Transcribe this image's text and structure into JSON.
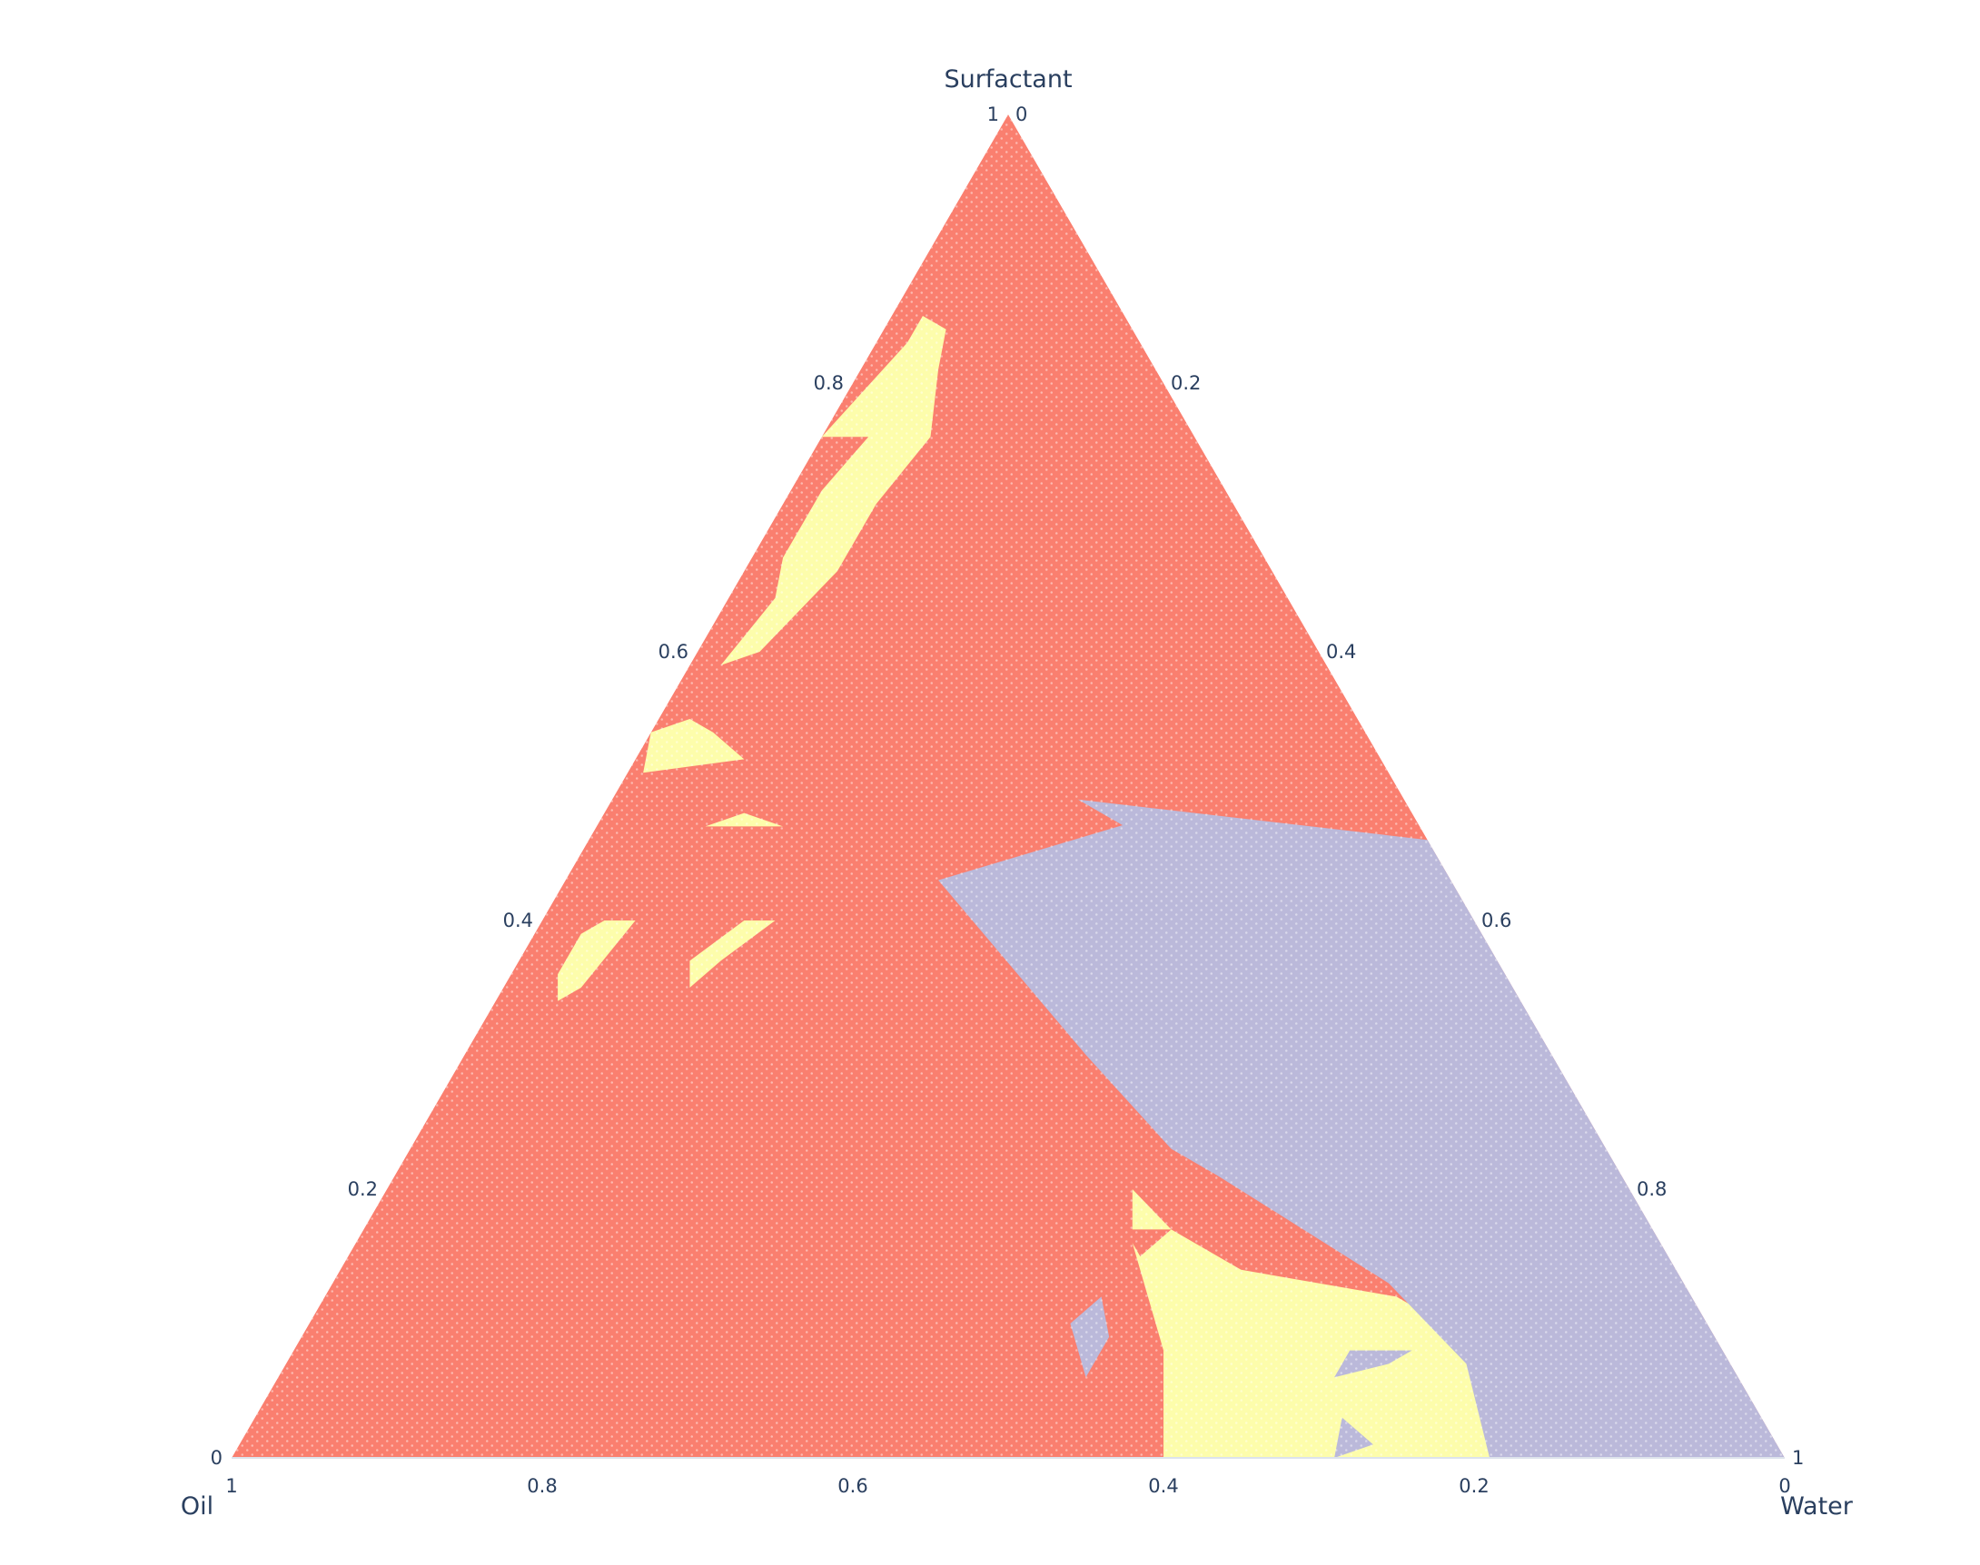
{
  "chart_data": {
    "type": "ternary",
    "axes": {
      "a": {
        "title": "Surfactant",
        "ticks": [
          "0",
          "0.2",
          "0.4",
          "0.6",
          "0.8",
          "1"
        ]
      },
      "b": {
        "title": "Oil",
        "ticks": [
          "0",
          "0.2",
          "0.4",
          "0.6",
          "0.8",
          "1"
        ]
      },
      "c": {
        "title": "Water",
        "ticks": [
          "0",
          "0.2",
          "0.4",
          "0.6",
          "0.8",
          "1"
        ]
      }
    },
    "grid": false,
    "legend": "none",
    "colors": {
      "salmon": "#fa7f6f",
      "yellow": "#fdfdab",
      "lavender": "#bbb9da",
      "axis_text": "#2a3f5f"
    },
    "regions": [
      {
        "color": "yellow",
        "vertices": [
          [
            0.83,
            0.15,
            0.02
          ],
          [
            0.76,
            0.24,
            0.0
          ],
          [
            0.76,
            0.21,
            0.03
          ],
          [
            0.72,
            0.26,
            0.02
          ],
          [
            0.67,
            0.31,
            0.02
          ],
          [
            0.64,
            0.33,
            0.03
          ],
          [
            0.59,
            0.39,
            0.02
          ],
          [
            0.6,
            0.36,
            0.04
          ],
          [
            0.66,
            0.28,
            0.06
          ],
          [
            0.71,
            0.23,
            0.06
          ],
          [
            0.76,
            0.17,
            0.07
          ],
          [
            0.81,
            0.14,
            0.05
          ],
          [
            0.84,
            0.12,
            0.04
          ],
          [
            0.85,
            0.13,
            0.02
          ]
        ]
      },
      {
        "color": "yellow",
        "vertices": [
          [
            0.54,
            0.46,
            0.0
          ],
          [
            0.51,
            0.48,
            0.01
          ],
          [
            0.52,
            0.41,
            0.07
          ],
          [
            0.54,
            0.42,
            0.04
          ],
          [
            0.55,
            0.43,
            0.02
          ]
        ]
      },
      {
        "color": "yellow",
        "vertices": [
          [
            0.47,
            0.5,
            0.03
          ],
          [
            0.47,
            0.46,
            0.07
          ],
          [
            0.48,
            0.43,
            0.09
          ],
          [
            0.47,
            0.41,
            0.12
          ],
          [
            0.47,
            0.46,
            0.07
          ]
        ]
      },
      {
        "color": "yellow",
        "vertices": [
          [
            0.4,
            0.54,
            0.06
          ],
          [
            0.35,
            0.6,
            0.05
          ],
          [
            0.34,
            0.62,
            0.04
          ],
          [
            0.36,
            0.61,
            0.03
          ],
          [
            0.37,
            0.6,
            0.03
          ],
          [
            0.39,
            0.58,
            0.03
          ],
          [
            0.4,
            0.56,
            0.04
          ]
        ]
      },
      {
        "color": "yellow",
        "vertices": [
          [
            0.4,
            0.47,
            0.13
          ],
          [
            0.37,
            0.52,
            0.11
          ],
          [
            0.35,
            0.53,
            0.12
          ],
          [
            0.37,
            0.5,
            0.13
          ],
          [
            0.4,
            0.45,
            0.15
          ]
        ]
      },
      {
        "color": "yellow",
        "vertices": [
          [
            0.24,
            0.3,
            0.46
          ],
          [
            0.16,
            0.34,
            0.5
          ],
          [
            0.12,
            0.35,
            0.53
          ],
          [
            0.08,
            0.36,
            0.56
          ],
          [
            0.0,
            0.4,
            0.6
          ],
          [
            0.0,
            0.18,
            0.82
          ],
          [
            0.05,
            0.16,
            0.79
          ],
          [
            0.1,
            0.17,
            0.73
          ],
          [
            0.12,
            0.19,
            0.69
          ],
          [
            0.14,
            0.28,
            0.58
          ],
          [
            0.17,
            0.31,
            0.52
          ],
          [
            0.2,
            0.32,
            0.48
          ]
        ]
      },
      {
        "color": "lavender",
        "vertices": [
          [
            0.49,
            0.21,
            0.3
          ],
          [
            0.44,
            0.16,
            0.4
          ],
          [
            0.48,
            0.16,
            0.36
          ],
          [
            0.43,
            0.33,
            0.24
          ],
          [
            0.3,
            0.3,
            0.4
          ],
          [
            0.23,
            0.28,
            0.49
          ],
          [
            0.21,
            0.26,
            0.53
          ],
          [
            0.13,
            0.19,
            0.68
          ],
          [
            0.1,
            0.18,
            0.72
          ],
          [
            0.07,
            0.17,
            0.76
          ],
          [
            0.0,
            0.19,
            0.81
          ],
          [
            0.0,
            0.0,
            1.0
          ],
          [
            0.46,
            0.0,
            0.54
          ]
        ]
      },
      {
        "color": "lavender",
        "vertices": [
          [
            0.12,
            0.38,
            0.5
          ],
          [
            0.1,
            0.41,
            0.49
          ],
          [
            0.06,
            0.42,
            0.52
          ],
          [
            0.09,
            0.39,
            0.52
          ]
        ]
      },
      {
        "color": "lavender",
        "vertices": [
          [
            0.08,
            0.24,
            0.68
          ],
          [
            0.06,
            0.26,
            0.68
          ],
          [
            0.07,
            0.22,
            0.71
          ],
          [
            0.08,
            0.2,
            0.72
          ]
        ]
      },
      {
        "color": "lavender",
        "vertices": [
          [
            0.03,
            0.27,
            0.7
          ],
          [
            0.0,
            0.29,
            0.71
          ],
          [
            0.01,
            0.26,
            0.73
          ]
        ]
      },
      {
        "color": "salmon",
        "vertices": [
          [
            0.17,
            0.34,
            0.49
          ],
          [
            0.15,
            0.34,
            0.51
          ],
          [
            0.17,
            0.31,
            0.52
          ]
        ]
      }
    ]
  }
}
